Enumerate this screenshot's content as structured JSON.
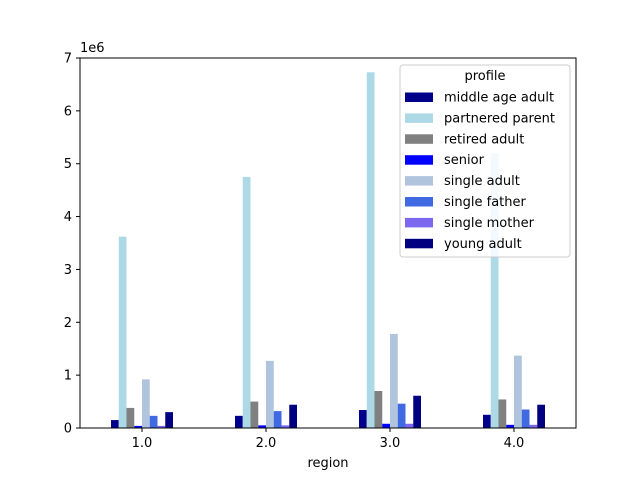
{
  "chart_data": {
    "type": "bar",
    "categories": [
      "1.0",
      "2.0",
      "3.0",
      "4.0"
    ],
    "xlabel": "region",
    "ylabel": "",
    "y_scale_label": "1e6",
    "ylim": [
      0,
      7000000
    ],
    "yticks": [
      0,
      1,
      2,
      3,
      4,
      5,
      6,
      7
    ],
    "ytick_multiplier": 1000000,
    "grid": false,
    "legend": {
      "title": "profile",
      "placement": "top-right"
    },
    "series": [
      {
        "name": "middle age adult",
        "color": "#00008b",
        "values": [
          150000,
          230000,
          340000,
          250000
        ]
      },
      {
        "name": "partnered parent",
        "color": "#add8e6",
        "values": [
          3620000,
          4750000,
          6730000,
          5200000
        ]
      },
      {
        "name": "retired adult",
        "color": "#808080",
        "values": [
          380000,
          500000,
          700000,
          540000
        ]
      },
      {
        "name": "senior",
        "color": "#0000ff",
        "values": [
          40000,
          50000,
          80000,
          60000
        ]
      },
      {
        "name": "single adult",
        "color": "#b0c4de",
        "values": [
          920000,
          1270000,
          1780000,
          1370000
        ]
      },
      {
        "name": "single father",
        "color": "#4169e1",
        "values": [
          230000,
          320000,
          460000,
          350000
        ]
      },
      {
        "name": "single mother",
        "color": "#7b68ee",
        "values": [
          40000,
          50000,
          80000,
          60000
        ]
      },
      {
        "name": "young adult",
        "color": "#000080",
        "values": [
          300000,
          440000,
          610000,
          440000
        ]
      }
    ]
  }
}
